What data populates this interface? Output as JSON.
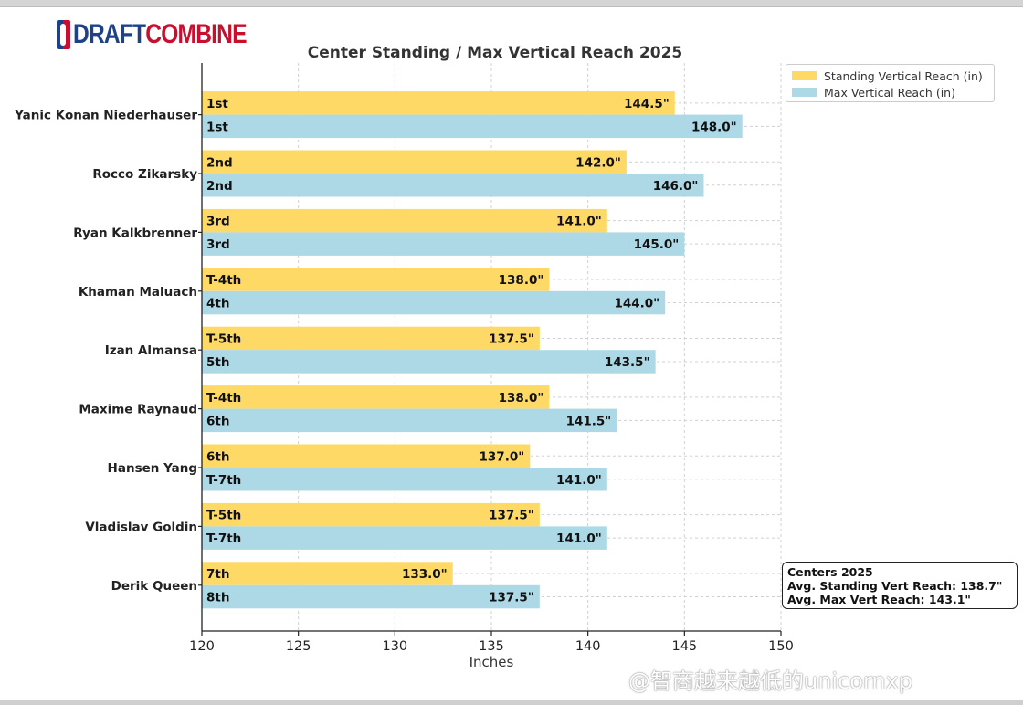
{
  "logo": {
    "word1": "DRAFT",
    "word2": "COMBINE"
  },
  "chart_data": {
    "type": "bar",
    "orientation": "horizontal",
    "title": "Center Standing / Max Vertical Reach 2025",
    "xlabel": "Inches",
    "ylabel": "",
    "xlim": [
      120,
      150
    ],
    "xticks": [
      120,
      125,
      130,
      135,
      140,
      145,
      150
    ],
    "grid": true,
    "legend_position": "top-right",
    "categories": [
      "Yanic Konan Niederhauser",
      "Rocco Zikarsky",
      "Ryan Kalkbrenner",
      "Khaman Maluach",
      "Izan Almansa",
      "Maxime Raynaud",
      "Hansen Yang",
      "Vladislav Goldin",
      "Derik Queen"
    ],
    "series": [
      {
        "name": "Standing Vertical Reach (in)",
        "color": "#ffd966",
        "values": [
          144.5,
          142.0,
          141.0,
          138.0,
          137.5,
          138.0,
          137.0,
          137.5,
          133.0
        ],
        "value_labels": [
          "144.5\"",
          "142.0\"",
          "141.0\"",
          "138.0\"",
          "137.5\"",
          "138.0\"",
          "137.0\"",
          "137.5\"",
          "133.0\""
        ],
        "rank_labels": [
          "1st",
          "2nd",
          "3rd",
          "T-4th",
          "T-5th",
          "T-4th",
          "6th",
          "T-5th",
          "7th"
        ]
      },
      {
        "name": "Max Vertical Reach (in)",
        "color": "#add8e6",
        "values": [
          148.0,
          146.0,
          145.0,
          144.0,
          143.5,
          141.5,
          141.0,
          141.0,
          137.5
        ],
        "value_labels": [
          "148.0\"",
          "146.0\"",
          "145.0\"",
          "144.0\"",
          "143.5\"",
          "141.5\"",
          "141.0\"",
          "141.0\"",
          "137.5\""
        ],
        "rank_labels": [
          "1st",
          "2nd",
          "3rd",
          "4th",
          "5th",
          "6th",
          "T-7th",
          "T-7th",
          "8th"
        ]
      }
    ],
    "annotation": [
      "Centers 2025",
      "Avg. Standing Vert Reach: 138.7\"",
      "Avg. Max Vert Reach: 143.1\""
    ]
  },
  "watermark": "@智商越来越低的unicornxp"
}
